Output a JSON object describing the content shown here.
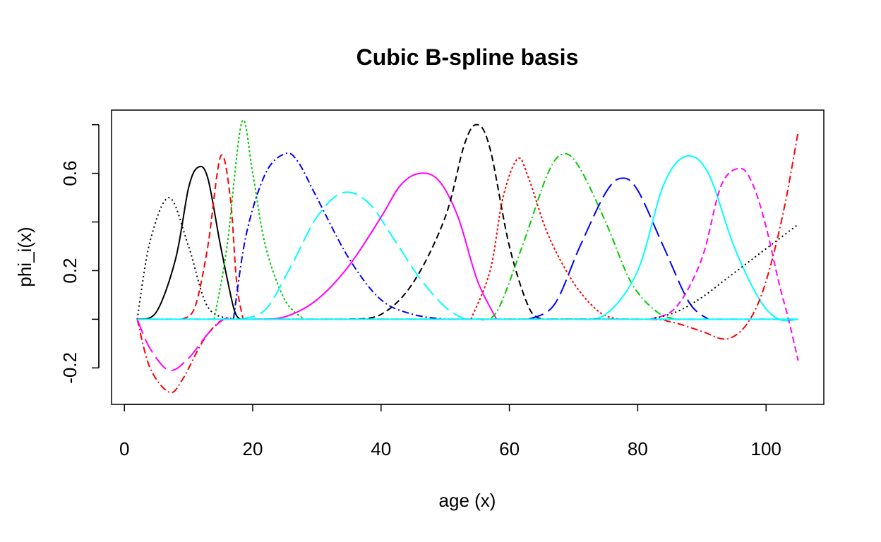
{
  "chart_data": {
    "type": "line",
    "title": "Cubic B-spline basis",
    "xlabel": "age (x)",
    "ylabel": "phi_i(x)",
    "xlim": [
      -2,
      109
    ],
    "ylim": [
      -0.35,
      0.86
    ],
    "xticks": [
      0,
      20,
      40,
      60,
      80,
      100
    ],
    "xtick_labels": [
      "0",
      "20",
      "40",
      "60",
      "80",
      "100"
    ],
    "yticks": [
      -0.2,
      0.2,
      0.6
    ],
    "ytick_labels": [
      "-0.2",
      "0.2",
      "0.6"
    ],
    "grid": false,
    "legend": "none",
    "series": [
      {
        "color": "#000000",
        "dash": "2,4",
        "x": [
          2,
          4,
          7,
          10,
          13,
          17
        ],
        "y": [
          0,
          0.32,
          0.5,
          0.3,
          0.05,
          0
        ]
      },
      {
        "color": "#000000",
        "dash": "",
        "x": [
          2,
          5,
          8,
          10,
          11.5,
          13,
          15,
          17,
          18
        ],
        "y": [
          0,
          0.03,
          0.25,
          0.54,
          0.625,
          0.58,
          0.3,
          0.05,
          0
        ]
      },
      {
        "color": "#ff0000",
        "dash": "9,5",
        "x": [
          9,
          11,
          13,
          15,
          16.5,
          17.5,
          18.5
        ],
        "y": [
          0,
          0.05,
          0.3,
          0.67,
          0.5,
          0.15,
          0
        ]
      },
      {
        "color": "#00cc00",
        "dash": "3,3",
        "x": [
          14,
          16,
          18.3,
          20,
          22,
          25,
          28
        ],
        "y": [
          0,
          0.3,
          0.81,
          0.6,
          0.3,
          0.08,
          0
        ]
      },
      {
        "color": "#0000ff",
        "dash": "10,4,2,4",
        "x": [
          17,
          19,
          22,
          25,
          27,
          30,
          35,
          40,
          45,
          50
        ],
        "y": [
          0,
          0.35,
          0.6,
          0.68,
          0.65,
          0.5,
          0.25,
          0.08,
          0.02,
          0
        ]
      },
      {
        "color": "#00ffff",
        "dash": "22,8",
        "x": [
          18,
          22,
          26,
          30,
          34,
          38,
          42,
          46,
          50,
          53
        ],
        "y": [
          0,
          0.04,
          0.22,
          0.42,
          0.52,
          0.48,
          0.33,
          0.17,
          0.05,
          0
        ]
      },
      {
        "color": "#ff00ff",
        "dash": "",
        "x": [
          20,
          25,
          30,
          35,
          40,
          43,
          46,
          49,
          52,
          55,
          58
        ],
        "y": [
          0,
          0.01,
          0.08,
          0.22,
          0.42,
          0.55,
          0.6,
          0.57,
          0.42,
          0.16,
          0
        ]
      },
      {
        "color": "#000000",
        "dash": "9,5",
        "x": [
          35,
          40,
          45,
          50,
          53,
          55,
          57,
          60,
          63,
          65
        ],
        "y": [
          0,
          0.02,
          0.15,
          0.42,
          0.72,
          0.8,
          0.7,
          0.3,
          0.05,
          0
        ]
      },
      {
        "color": "#ff0000",
        "dash": "3,3",
        "x": [
          54,
          57,
          59,
          61.3,
          63,
          66,
          70,
          74,
          77
        ],
        "y": [
          0,
          0.2,
          0.5,
          0.66,
          0.58,
          0.35,
          0.15,
          0.03,
          0
        ]
      },
      {
        "color": "#00cc00",
        "dash": "10,4,2,4",
        "x": [
          55,
          58,
          62,
          66,
          68.5,
          71,
          75,
          79,
          83,
          86
        ],
        "y": [
          0,
          0.03,
          0.3,
          0.6,
          0.68,
          0.62,
          0.4,
          0.15,
          0.03,
          0
        ]
      },
      {
        "color": "#0000ff",
        "dash": "22,8",
        "x": [
          63,
          67,
          71,
          75,
          77.5,
          80,
          84,
          88,
          91
        ],
        "y": [
          0,
          0.06,
          0.3,
          0.52,
          0.58,
          0.53,
          0.3,
          0.07,
          0
        ]
      },
      {
        "color": "#00ffff",
        "dash": "",
        "x": [
          70,
          75,
          80,
          84,
          87.5,
          91,
          95,
          99,
          102,
          105
        ],
        "y": [
          0,
          0.02,
          0.2,
          0.55,
          0.67,
          0.6,
          0.3,
          0.08,
          0,
          0
        ]
      },
      {
        "color": "#ff00ff",
        "dash": "9,5",
        "x": [
          82,
          86,
          90,
          93,
          96,
          98,
          100,
          102,
          103.5,
          105
        ],
        "y": [
          0,
          0.05,
          0.25,
          0.55,
          0.62,
          0.55,
          0.38,
          0.15,
          0,
          -0.17
        ]
      },
      {
        "color": "#000000",
        "dash": "2,4",
        "x": [
          82,
          86,
          90,
          94,
          98,
          102,
          105
        ],
        "y": [
          0,
          0.03,
          0.09,
          0.17,
          0.25,
          0.33,
          0.39
        ]
      },
      {
        "color": "#ff0000",
        "dash": "10,4,2,4",
        "x": [
          2,
          4,
          7,
          9,
          12,
          14,
          15.5,
          17,
          20,
          50,
          80,
          85,
          90,
          93,
          95,
          97,
          99,
          101,
          103,
          105
        ],
        "y": [
          0,
          -0.2,
          -0.3,
          -0.25,
          -0.1,
          -0.03,
          0,
          0,
          0,
          0,
          0,
          -0.01,
          -0.05,
          -0.08,
          -0.07,
          -0.02,
          0.08,
          0.25,
          0.48,
          0.77
        ]
      },
      {
        "color": "#ff00ff",
        "dash": "22,8",
        "x": [
          2,
          4,
          7,
          10,
          13,
          15.5,
          17
        ],
        "y": [
          0,
          -0.12,
          -0.21,
          -0.16,
          -0.06,
          0,
          0
        ]
      },
      {
        "color": "#0000ff",
        "dash": "10,4,2,4",
        "x": [
          2,
          105
        ],
        "y": [
          0,
          0
        ]
      },
      {
        "color": "#00ffff",
        "dash": "",
        "x": [
          2,
          105
        ],
        "y": [
          0,
          0
        ]
      }
    ]
  }
}
